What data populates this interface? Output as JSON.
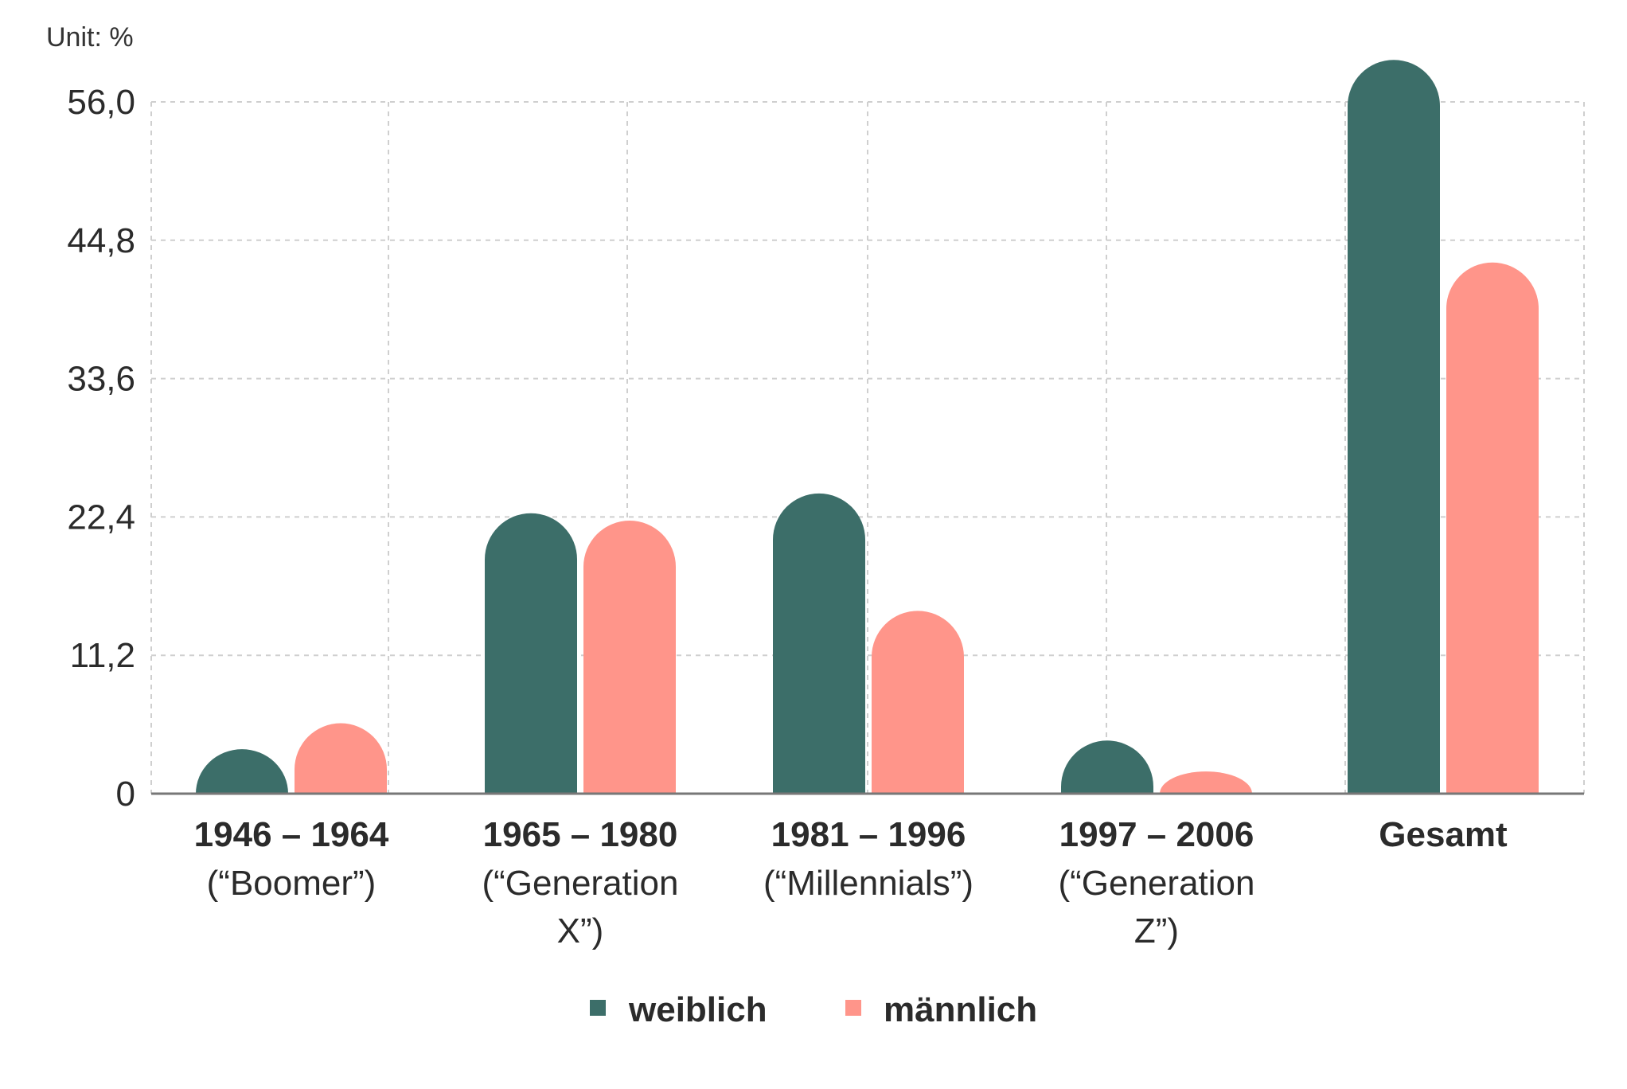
{
  "chart_data": {
    "type": "bar",
    "unit_label": "Unit: %",
    "categories": [
      {
        "main": "1946 – 1964",
        "sub": [
          "(“Boomer”)"
        ]
      },
      {
        "main": "1965 – 1980",
        "sub": [
          "(“Generation",
          "X”)"
        ]
      },
      {
        "main": "1981 – 1996",
        "sub": [
          "(“Millennials”)"
        ]
      },
      {
        "main": "1997 – 2006",
        "sub": [
          "(“Generation",
          "Z”)"
        ]
      },
      {
        "main": "Gesamt",
        "sub": []
      }
    ],
    "series": [
      {
        "name": "weiblich",
        "color": "#3c6e69",
        "values": [
          3.6,
          22.7,
          24.3,
          4.3,
          59.4
        ]
      },
      {
        "name": "männlich",
        "color": "#ff958a",
        "values": [
          5.7,
          22.1,
          14.8,
          1.8,
          43.0
        ]
      }
    ],
    "y_ticks": [
      "0",
      "11,2",
      "22,4",
      "33,6",
      "44,8",
      "56,0"
    ],
    "y_tick_values": [
      0,
      11.2,
      22.4,
      33.6,
      44.8,
      56.0
    ],
    "ylim": [
      0,
      56.0
    ],
    "grid": true,
    "legend_position": "bottom-center"
  }
}
